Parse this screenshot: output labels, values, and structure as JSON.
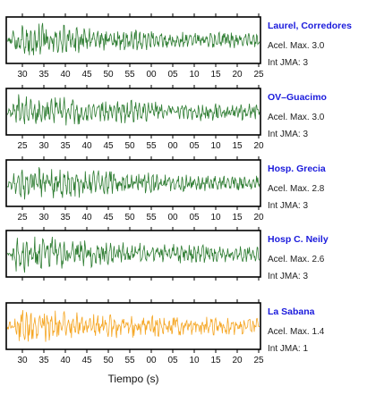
{
  "chart_data": {
    "type": "line",
    "xlabel": "Tiempo (s)",
    "panels": [
      {
        "station": "Laurel, Corredores",
        "acel_label": "Acel. Max. 3.0",
        "int_label": "Int JMA: 3",
        "color": "#2e7d32",
        "tick_labels": [
          "30",
          "35",
          "40",
          "45",
          "50",
          "55",
          "00",
          "05",
          "10",
          "15",
          "20",
          "25"
        ],
        "show_tick_labels": true,
        "trace": {
          "seed": 11,
          "attack": 0.06,
          "decay": 0.45,
          "floor": 0.28,
          "burst": 0.9
        }
      },
      {
        "station": "OV–Guacimo",
        "acel_label": "Acel. Max. 3.0",
        "int_label": "Int JMA: 3",
        "color": "#2e7d32",
        "tick_labels": [
          "25",
          "30",
          "35",
          "40",
          "45",
          "50",
          "55",
          "00",
          "05",
          "10",
          "15",
          "20"
        ],
        "show_tick_labels": true,
        "trace": {
          "seed": 23,
          "attack": 0.05,
          "decay": 0.55,
          "floor": 0.3,
          "burst": 0.85
        }
      },
      {
        "station": "Hosp. Grecia",
        "acel_label": "Acel. Max. 2.8",
        "int_label": "Int JMA: 3",
        "color": "#2e7d32",
        "tick_labels": [
          "25",
          "30",
          "35",
          "40",
          "45",
          "50",
          "55",
          "00",
          "05",
          "10",
          "15",
          "20"
        ],
        "show_tick_labels": true,
        "trace": {
          "seed": 37,
          "attack": 0.07,
          "decay": 0.5,
          "floor": 0.25,
          "burst": 0.9
        }
      },
      {
        "station": "Hosp C. Neily",
        "acel_label": "Acel. Max. 2.6",
        "int_label": "Int JMA: 3",
        "color": "#2e7d32",
        "tick_labels": [],
        "show_tick_labels": false,
        "trace": {
          "seed": 51,
          "attack": 0.04,
          "decay": 0.4,
          "floor": 0.32,
          "burst": 0.95
        }
      },
      {
        "station": "La Sabana",
        "acel_label": "Acel. Max. 1.4",
        "int_label": "Int JMA: 1",
        "color": "#f5a623",
        "tick_labels": [
          "30",
          "35",
          "40",
          "45",
          "50",
          "55",
          "00",
          "05",
          "10",
          "15",
          "20",
          "25"
        ],
        "show_tick_labels": true,
        "trace": {
          "seed": 67,
          "attack": 0.05,
          "decay": 0.6,
          "floor": 0.35,
          "burst": 0.8
        }
      }
    ]
  }
}
